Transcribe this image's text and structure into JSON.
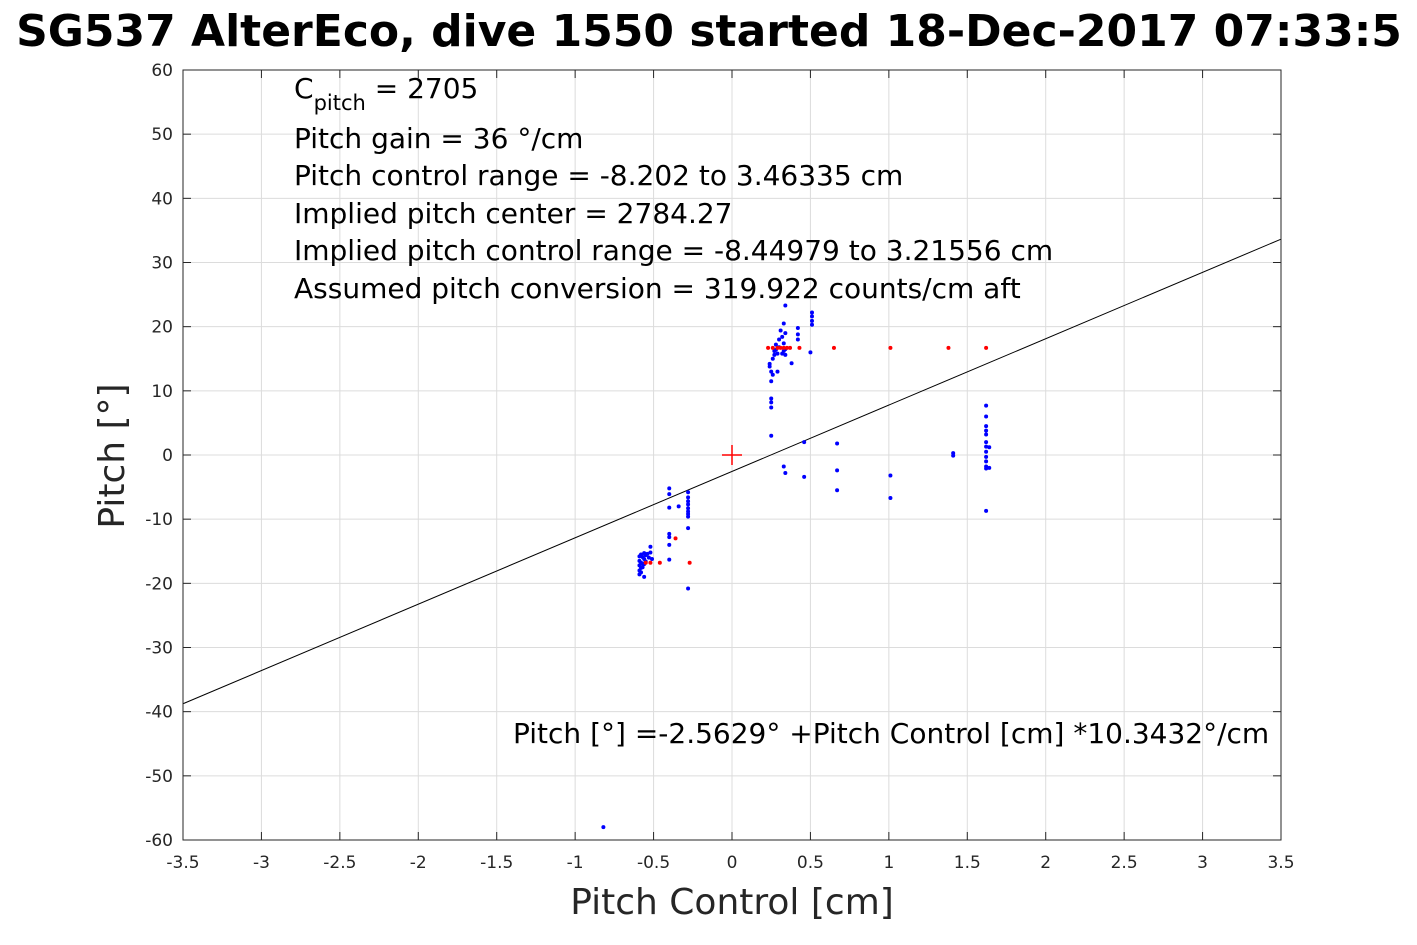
{
  "chart_data": {
    "type": "scatter",
    "title": "SG537 AlterEco, dive 1550 started 18-Dec-2017 07:33:5",
    "xlabel": "Pitch Control [cm]",
    "ylabel": "Pitch [°]",
    "xlim": [
      -3.5,
      3.5
    ],
    "ylim": [
      -60,
      60
    ],
    "grid": true,
    "x_ticks": [
      "-3.5",
      "-3",
      "-2.5",
      "-2",
      "-1.5",
      "-1",
      "-0.5",
      "0",
      "0.5",
      "1",
      "1.5",
      "2",
      "2.5",
      "3",
      "3.5"
    ],
    "y_ticks": [
      "60",
      "50",
      "40",
      "30",
      "20",
      "10",
      "0",
      "-10",
      "-20",
      "-30",
      "-40",
      "-50",
      "-60"
    ],
    "annotations": {
      "c_pitch": "C",
      "c_pitch_sub": "pitch",
      "c_pitch_value": " = 2705",
      "pitch_gain": "Pitch gain = 36 °/cm",
      "control_range": "Pitch control range = -8.202 to 3.46335 cm",
      "implied_center": "Implied pitch center = 2784.27",
      "implied_range": "Implied pitch control range = -8.44979 to 3.21556 cm",
      "conversion": "Assumed pitch conversion = 319.922 counts/cm aft",
      "fit_equation": "Pitch [°] =-2.5629° +Pitch Control [cm] *10.3432°/cm"
    },
    "fit_line": {
      "intercept": -2.5629,
      "slope": 10.3432,
      "color": "#000000"
    },
    "center_marker": {
      "x": 0,
      "y": 0,
      "color": "#ff0000"
    },
    "series": [
      {
        "color": "#0000ff",
        "points": [
          [
            -0.59,
            -15.8
          ],
          [
            -0.59,
            -16.5
          ],
          [
            -0.59,
            -17.2
          ],
          [
            -0.59,
            -18.0
          ],
          [
            -0.59,
            -18.6
          ],
          [
            -0.58,
            -15.5
          ],
          [
            -0.58,
            -16.8
          ],
          [
            -0.58,
            -17.6
          ],
          [
            -0.58,
            -18.3
          ],
          [
            -0.57,
            -15.9
          ],
          [
            -0.57,
            -16.9
          ],
          [
            -0.57,
            -17.5
          ],
          [
            -0.56,
            -15.3
          ],
          [
            -0.56,
            -16.2
          ],
          [
            -0.56,
            -17.0
          ],
          [
            -0.56,
            -19.0
          ],
          [
            -0.55,
            -15.6
          ],
          [
            -0.55,
            -16.6
          ],
          [
            -0.54,
            -15.4
          ],
          [
            -0.53,
            -16.0
          ],
          [
            -0.52,
            -14.3
          ],
          [
            -0.52,
            -15.2
          ],
          [
            -0.51,
            -16.2
          ],
          [
            -0.4,
            -5.2
          ],
          [
            -0.4,
            -6.1
          ],
          [
            -0.4,
            -8.2
          ],
          [
            -0.4,
            -12.3
          ],
          [
            -0.4,
            -12.8
          ],
          [
            -0.4,
            -14.0
          ],
          [
            -0.4,
            -16.3
          ],
          [
            -0.34,
            -8.0
          ],
          [
            -0.28,
            -5.8
          ],
          [
            -0.28,
            -6.6
          ],
          [
            -0.28,
            -7.2
          ],
          [
            -0.28,
            -7.7
          ],
          [
            -0.28,
            -8.3
          ],
          [
            -0.28,
            -8.8
          ],
          [
            -0.28,
            -9.2
          ],
          [
            -0.28,
            -9.6
          ],
          [
            -0.28,
            -11.4
          ],
          [
            -0.28,
            -20.8
          ],
          [
            0.24,
            14.2
          ],
          [
            0.24,
            13.8
          ],
          [
            0.25,
            13.0
          ],
          [
            0.25,
            11.5
          ],
          [
            0.25,
            8.8
          ],
          [
            0.25,
            8.2
          ],
          [
            0.25,
            7.4
          ],
          [
            0.25,
            3.0
          ],
          [
            0.26,
            15.0
          ],
          [
            0.26,
            12.5
          ],
          [
            0.27,
            15.6
          ],
          [
            0.27,
            16.2
          ],
          [
            0.28,
            17.2
          ],
          [
            0.28,
            16.4
          ],
          [
            0.29,
            15.8
          ],
          [
            0.29,
            13.0
          ],
          [
            0.3,
            18.0
          ],
          [
            0.3,
            16.8
          ],
          [
            0.31,
            19.4
          ],
          [
            0.32,
            18.4
          ],
          [
            0.32,
            15.8
          ],
          [
            0.33,
            20.5
          ],
          [
            0.33,
            17.4
          ],
          [
            0.33,
            16.2
          ],
          [
            0.34,
            23.3
          ],
          [
            0.34,
            19.0
          ],
          [
            0.34,
            16.5
          ],
          [
            0.34,
            15.6
          ],
          [
            0.33,
            -1.8
          ],
          [
            0.34,
            -2.8
          ],
          [
            0.38,
            14.3
          ],
          [
            0.42,
            19.8
          ],
          [
            0.42,
            18.8
          ],
          [
            0.42,
            18.0
          ],
          [
            0.46,
            2.0
          ],
          [
            0.46,
            -3.4
          ],
          [
            0.51,
            22.2
          ],
          [
            0.51,
            21.6
          ],
          [
            0.51,
            20.9
          ],
          [
            0.51,
            20.3
          ],
          [
            0.5,
            16.0
          ],
          [
            0.67,
            1.8
          ],
          [
            0.67,
            -2.4
          ],
          [
            0.67,
            -5.5
          ],
          [
            1.01,
            -3.2
          ],
          [
            1.01,
            -6.7
          ],
          [
            1.41,
            0.3
          ],
          [
            1.41,
            -0.1
          ],
          [
            1.62,
            7.7
          ],
          [
            1.62,
            6.0
          ],
          [
            1.62,
            4.5
          ],
          [
            1.62,
            3.8
          ],
          [
            1.62,
            3.2
          ],
          [
            1.62,
            2.0
          ],
          [
            1.62,
            1.3
          ],
          [
            1.62,
            0.5
          ],
          [
            1.62,
            -0.3
          ],
          [
            1.62,
            -1.0
          ],
          [
            1.62,
            -1.8
          ],
          [
            1.62,
            -2.1
          ],
          [
            1.62,
            -8.7
          ],
          [
            1.64,
            1.2
          ],
          [
            1.64,
            -2.0
          ],
          [
            -0.82,
            -58.0
          ]
        ]
      },
      {
        "color": "#ff0000",
        "points": [
          [
            -0.55,
            -16.8
          ],
          [
            -0.52,
            -16.8
          ],
          [
            -0.46,
            -16.8
          ],
          [
            -0.36,
            -13.0
          ],
          [
            -0.27,
            -16.8
          ],
          [
            0.23,
            16.7
          ],
          [
            0.26,
            16.7
          ],
          [
            0.29,
            16.7
          ],
          [
            0.31,
            16.7
          ],
          [
            0.33,
            16.7
          ],
          [
            0.35,
            16.7
          ],
          [
            0.37,
            16.7
          ],
          [
            0.43,
            16.7
          ],
          [
            0.65,
            16.7
          ],
          [
            1.01,
            16.7
          ],
          [
            1.38,
            16.7
          ],
          [
            1.62,
            16.7
          ]
        ]
      }
    ]
  }
}
